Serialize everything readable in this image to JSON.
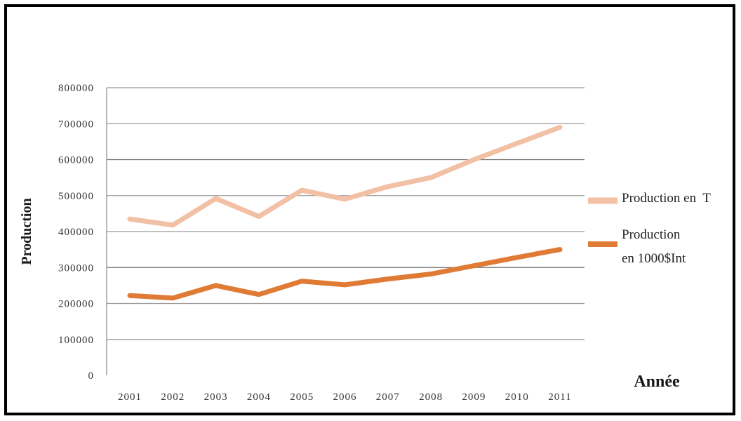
{
  "chart_data": {
    "type": "line",
    "title": "",
    "xlabel": "Année",
    "ylabel": "Production",
    "x": [
      "2001",
      "2002",
      "2003",
      "2004",
      "2005",
      "2006",
      "2007",
      "2008",
      "2009",
      "2010",
      "2011"
    ],
    "ylim": [
      0,
      800000
    ],
    "yticks": [
      "0",
      "100000",
      "200000",
      "300000",
      "400000",
      "500000",
      "600000",
      "700000",
      "800000"
    ],
    "grid": true,
    "legend_position": "right",
    "series": [
      {
        "name": "Production en  T",
        "name_lines": [
          "Production en  T"
        ],
        "color": "#f2c0a4",
        "values": [
          435000,
          418000,
          492000,
          442000,
          515000,
          490000,
          525000,
          550000,
          600000,
          645000,
          690000
        ]
      },
      {
        "name": "Production en 1000$Int",
        "name_lines": [
          "Production",
          "en 1000$Int"
        ],
        "color": "#e07b35",
        "values": [
          222000,
          215000,
          250000,
          225000,
          262000,
          252000,
          268000,
          282000,
          305000,
          328000,
          350000
        ]
      }
    ]
  }
}
